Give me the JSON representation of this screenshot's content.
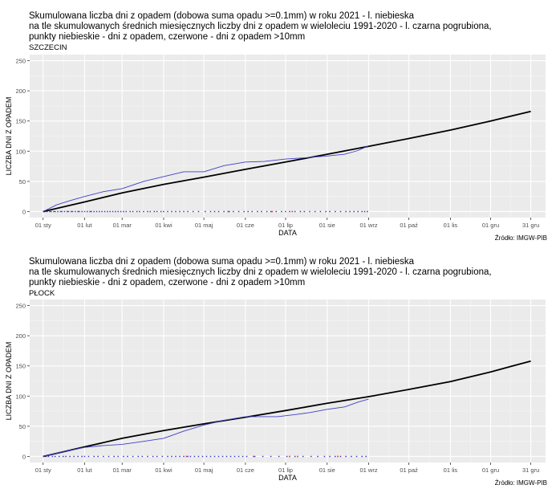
{
  "chart_data": [
    {
      "type": "line",
      "title": "Skumulowana liczba dni z opadem (dobowa suma opadu >=0.1mm) w roku 2021 - l. niebieska",
      "subtitle_lines": [
        "na tle skumulowanych średnich miesięcznych liczby dni z opadem w wieloleciu 1991-2020 - l. czarna pogrubiona,",
        "punkty niebieskie - dni z opadem, czerwone - dni z opadem >10mm"
      ],
      "station": "SZCZECIN",
      "xlabel": "DATA",
      "ylabel": "LICZBA DNI Z OPADEM",
      "source": "Źródło: IMGW-PIB",
      "ylim": [
        -10,
        260
      ],
      "yticks": [
        0,
        50,
        100,
        150,
        200,
        250
      ],
      "xlim": [
        -10,
        375
      ],
      "xticks": [
        {
          "label": "01 sty",
          "day": 0
        },
        {
          "label": "01 lut",
          "day": 31
        },
        {
          "label": "01 mar",
          "day": 59
        },
        {
          "label": "01 kwi",
          "day": 90
        },
        {
          "label": "01 maj",
          "day": 120
        },
        {
          "label": "01 cze",
          "day": 151
        },
        {
          "label": "01 lip",
          "day": 181
        },
        {
          "label": "01 sie",
          "day": 212
        },
        {
          "label": "01 wrz",
          "day": 243
        },
        {
          "label": "01 paź",
          "day": 273
        },
        {
          "label": "01 lis",
          "day": 304
        },
        {
          "label": "01 gru",
          "day": 334
        },
        {
          "label": "31 gru",
          "day": 364
        }
      ],
      "grid": true,
      "series": [
        {
          "role": "normal_1991_2020",
          "color": "#000000",
          "x": [
            0,
            31,
            59,
            90,
            120,
            151,
            181,
            212,
            243,
            273,
            304,
            334,
            364
          ],
          "y": [
            0,
            16,
            31,
            45,
            57,
            70,
            82,
            95,
            108,
            121,
            135,
            150,
            166
          ]
        },
        {
          "role": "actual_2021",
          "color": "#3f3fc8",
          "x": [
            0,
            10,
            20,
            31,
            45,
            59,
            75,
            90,
            105,
            120,
            135,
            151,
            165,
            181,
            195,
            212,
            225,
            235,
            243
          ],
          "y": [
            0,
            11,
            18,
            25,
            33,
            38,
            50,
            58,
            66,
            66,
            76,
            82,
            83,
            87,
            89,
            92,
            95,
            101,
            109
          ]
        }
      ],
      "rain_day_points": {
        "color_blue": "#3a3ac8",
        "color_red": "#e04040",
        "blue_days": [
          1,
          3,
          5,
          6,
          8,
          9,
          11,
          13,
          14,
          16,
          18,
          19,
          21,
          22,
          24,
          26,
          27,
          29,
          31,
          33,
          35,
          36,
          38,
          40,
          42,
          44,
          46,
          48,
          50,
          52,
          54,
          56,
          58,
          60,
          62,
          65,
          67,
          70,
          72,
          75,
          78,
          80,
          83,
          85,
          88,
          90,
          93,
          96,
          99,
          102,
          105,
          108,
          112,
          116,
          121,
          125,
          128,
          131,
          135,
          139,
          142,
          146,
          150,
          153,
          156,
          160,
          163,
          167,
          170,
          174,
          178,
          181,
          184,
          188,
          192,
          195,
          199,
          203,
          207,
          211,
          214,
          218,
          222,
          226,
          229,
          232,
          235,
          238,
          240,
          242
        ],
        "red_days": [
          138,
          171,
          186
        ]
      }
    },
    {
      "type": "line",
      "title": "Skumulowana liczba dni z opadem (dobowa suma opadu >=0.1mm) w roku 2021 - l. niebieska",
      "subtitle_lines": [
        "na tle skumulowanych średnich miesięcznych liczby dni z opadem w wieloleciu 1991-2020 - l. czarna pogrubiona,",
        "punkty niebieskie - dni z opadem, czerwone - dni z opadem >10mm"
      ],
      "station": "PŁOCK",
      "xlabel": "DATA",
      "ylabel": "LICZBA DNI Z OPADEM",
      "source": "Źródło: IMGW-PIB",
      "ylim": [
        -10,
        260
      ],
      "yticks": [
        0,
        50,
        100,
        150,
        200,
        250
      ],
      "xlim": [
        -10,
        375
      ],
      "xticks": [
        {
          "label": "01 sty",
          "day": 0
        },
        {
          "label": "01 lut",
          "day": 31
        },
        {
          "label": "01 mar",
          "day": 59
        },
        {
          "label": "01 kwi",
          "day": 90
        },
        {
          "label": "01 maj",
          "day": 120
        },
        {
          "label": "01 cze",
          "day": 151
        },
        {
          "label": "01 lip",
          "day": 181
        },
        {
          "label": "01 sie",
          "day": 212
        },
        {
          "label": "01 wrz",
          "day": 243
        },
        {
          "label": "01 paź",
          "day": 273
        },
        {
          "label": "01 lis",
          "day": 304
        },
        {
          "label": "01 gru",
          "day": 334
        },
        {
          "label": "31 gru",
          "day": 364
        }
      ],
      "grid": true,
      "series": [
        {
          "role": "normal_1991_2020",
          "color": "#000000",
          "x": [
            0,
            31,
            59,
            90,
            120,
            151,
            181,
            212,
            243,
            273,
            304,
            334,
            364
          ],
          "y": [
            0,
            16,
            30,
            43,
            54,
            65,
            76,
            88,
            99,
            111,
            124,
            140,
            158
          ]
        },
        {
          "role": "actual_2021",
          "color": "#3f3fc8",
          "x": [
            0,
            15,
            31,
            45,
            59,
            75,
            90,
            105,
            120,
            135,
            151,
            160,
            175,
            190,
            200,
            212,
            225,
            235,
            243
          ],
          "y": [
            0,
            8,
            15,
            18,
            20,
            25,
            30,
            42,
            52,
            60,
            66,
            66,
            66,
            70,
            73,
            78,
            82,
            90,
            95
          ]
        }
      ],
      "rain_day_points": {
        "color_blue": "#3a3ac8",
        "color_red": "#e04040",
        "blue_days": [
          2,
          4,
          7,
          9,
          12,
          15,
          17,
          20,
          23,
          26,
          29,
          31,
          34,
          38,
          41,
          45,
          49,
          53,
          56,
          60,
          63,
          67,
          71,
          74,
          78,
          82,
          85,
          89,
          93,
          96,
          99,
          102,
          105,
          108,
          110,
          113,
          116,
          119,
          122,
          125,
          128,
          131,
          134,
          137,
          140,
          143,
          146,
          149,
          152,
          158,
          164,
          170,
          176,
          182,
          188,
          194,
          200,
          205,
          210,
          214,
          218,
          222,
          226,
          230,
          234,
          238,
          241
        ],
        "red_days": [
          107,
          157,
          184,
          190,
          220
        ]
      }
    }
  ]
}
